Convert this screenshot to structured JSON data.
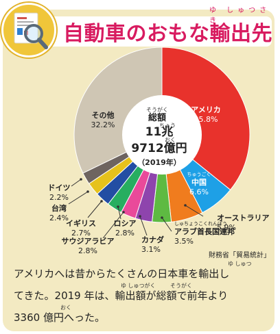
{
  "header": {
    "title": "自動車のおもな輸出先",
    "title_ruby": "ゆ しゅつさき",
    "icon": "magnifier-report-icon"
  },
  "chart_data": {
    "type": "pie",
    "center": {
      "ruby_total": "そうがく",
      "label_total": "総額",
      "ruby_cho": "ちょう",
      "amount_line1": "11兆",
      "ruby_oku": "おく",
      "amount_line2": "9712億円",
      "year": "（2019年）"
    },
    "slices": [
      {
        "name": "アメリカ",
        "value": 35.8,
        "value_label": "35.8%",
        "color": "#e8322c"
      },
      {
        "name": "中国",
        "ruby": "ちゅうごく",
        "value": 6.6,
        "value_label": "6.6%",
        "color": "#1ea0e6"
      },
      {
        "name": "オーストラリア",
        "value": 5.9,
        "value_label": "5.9%",
        "color": "#f07c1e"
      },
      {
        "name": "アラブ首長国連邦",
        "ruby": "しゅちょうこくれんぽう",
        "value": 3.5,
        "value_label": "3.5%",
        "color": "#5eba42"
      },
      {
        "name": "カナダ",
        "value": 3.1,
        "value_label": "3.1%",
        "color": "#8e44ad"
      },
      {
        "name": "サウジアラビア",
        "value": 2.8,
        "value_label": "2.8%",
        "color": "#e94a9a"
      },
      {
        "name": "ロシア",
        "value": 2.8,
        "value_label": "2.8%",
        "color": "#27ae60"
      },
      {
        "name": "イギリス",
        "value": 2.7,
        "value_label": "2.7%",
        "color": "#234ea3"
      },
      {
        "name": "台湾",
        "value": 2.4,
        "value_label": "2.4%",
        "color": "#e6c21c"
      },
      {
        "name": "ドイツ",
        "value": 2.2,
        "value_label": "2.2%",
        "color": "#6e6460"
      },
      {
        "name": "その他",
        "value": 32.2,
        "value_label": "32.2%",
        "color": "#cfc6b4"
      }
    ],
    "source": "財務省「貿易統計」"
  },
  "body": {
    "line1": "アメリカへは昔からたくさんの日本車を輸出し",
    "line2": "てきた。2019 年は、輸出額が総額で前年より",
    "line3": "3360 億円へった。",
    "ruby_yushutsu1": "ゆ しゅつ",
    "ruby_yushutsugaku": "ゆ しゅつがく",
    "ruby_sougaku": "そうがく",
    "ruby_oku": "おく"
  }
}
